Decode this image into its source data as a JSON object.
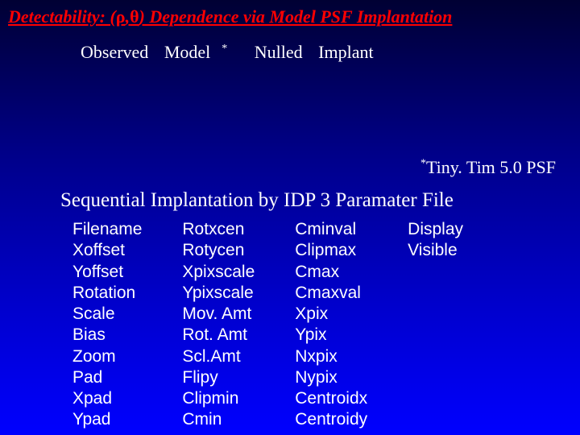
{
  "title_prefix": "Detectability: (",
  "title_greek1": "ρ",
  "title_comma": ",",
  "title_greek2": "θ",
  "title_suffix": ") Dependence via Model PSF Implantation",
  "labels": {
    "observed": "Observed",
    "model": "Model",
    "star": "*",
    "nulled": "Nulled",
    "implant": "Implant"
  },
  "psf_note": "Tiny. Tim 5.0 PSF",
  "subheading": "Sequential Implantation by IDP 3 Paramater File",
  "columns": [
    [
      "Filename",
      "Xoffset",
      "Yoffset",
      "Rotation",
      "Scale",
      "Bias",
      "Zoom",
      "Pad",
      "Xpad",
      "Ypad"
    ],
    [
      "Rotxcen",
      "Rotycen",
      "Xpixscale",
      "Ypixscale",
      "Mov. Amt",
      "Rot. Amt",
      "Scl.Amt",
      "Flipy",
      "Clipmin",
      "Cmin"
    ],
    [
      "Cminval",
      "Clipmax",
      "Cmax",
      "Cmaxval",
      "Xpix",
      "Ypix",
      "Nxpix",
      "Nypix",
      "Centroidx",
      "Centroidy"
    ],
    [
      "Display",
      "Visible"
    ]
  ]
}
